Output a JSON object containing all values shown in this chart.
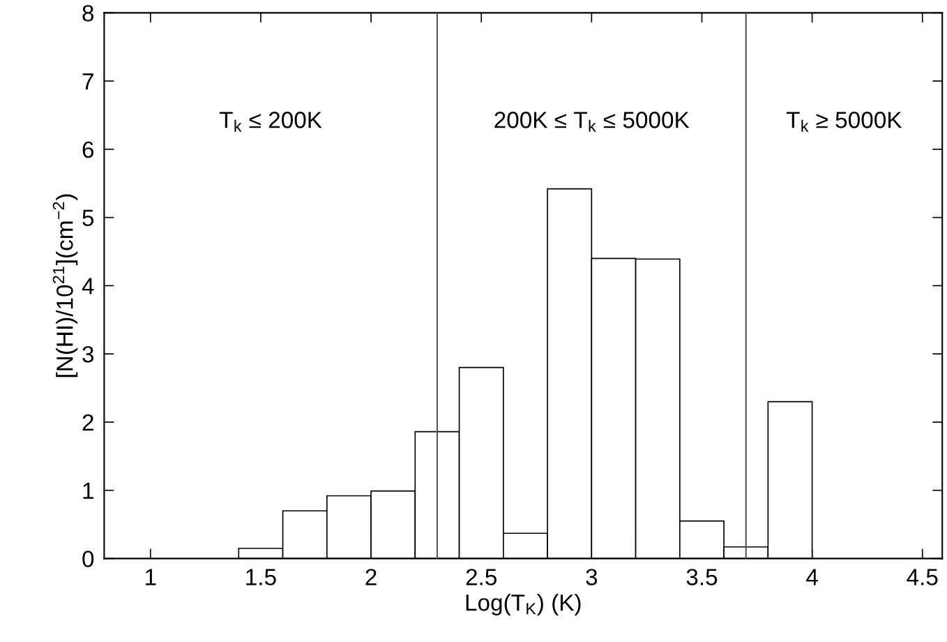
{
  "chart_data": {
    "type": "histogram",
    "xlabel": "Log(T$_{K}$) (K)",
    "ylabel": "[N(HI)/10$^{21}$](cm$^{−2}$)",
    "bins": [
      1.4,
      1.6,
      1.8,
      2.0,
      2.2,
      2.4,
      2.6,
      2.8,
      3.0,
      3.2,
      3.4,
      3.6,
      3.8,
      4.0
    ],
    "values": [
      0.15,
      0.7,
      0.92,
      0.99,
      1.86,
      2.8,
      0.37,
      5.42,
      4.4,
      4.39,
      0.55,
      0.17,
      2.3
    ],
    "color": "#ffffff",
    "xlim": [
      0.79,
      4.59
    ],
    "xticks": [
      1,
      1.5,
      2,
      2.5,
      3,
      3.5,
      4,
      4.5
    ],
    "ylim": [
      0,
      8
    ],
    "yticks": [
      0,
      1,
      2,
      3,
      4,
      5,
      6,
      7,
      8
    ],
    "ref_lines": [
      {
        "axis": "x",
        "value": 2.3,
        "color": "#555555"
      },
      {
        "axis": "x",
        "value": 3.7,
        "color": "#555555"
      }
    ],
    "annotations": [
      "T$_{k}$ ≤ 200K",
      "200K ≤ T$_{k}$ ≤ 5000K",
      "T$_{k}$ ≥ 5000K"
    ],
    "grid": false
  }
}
